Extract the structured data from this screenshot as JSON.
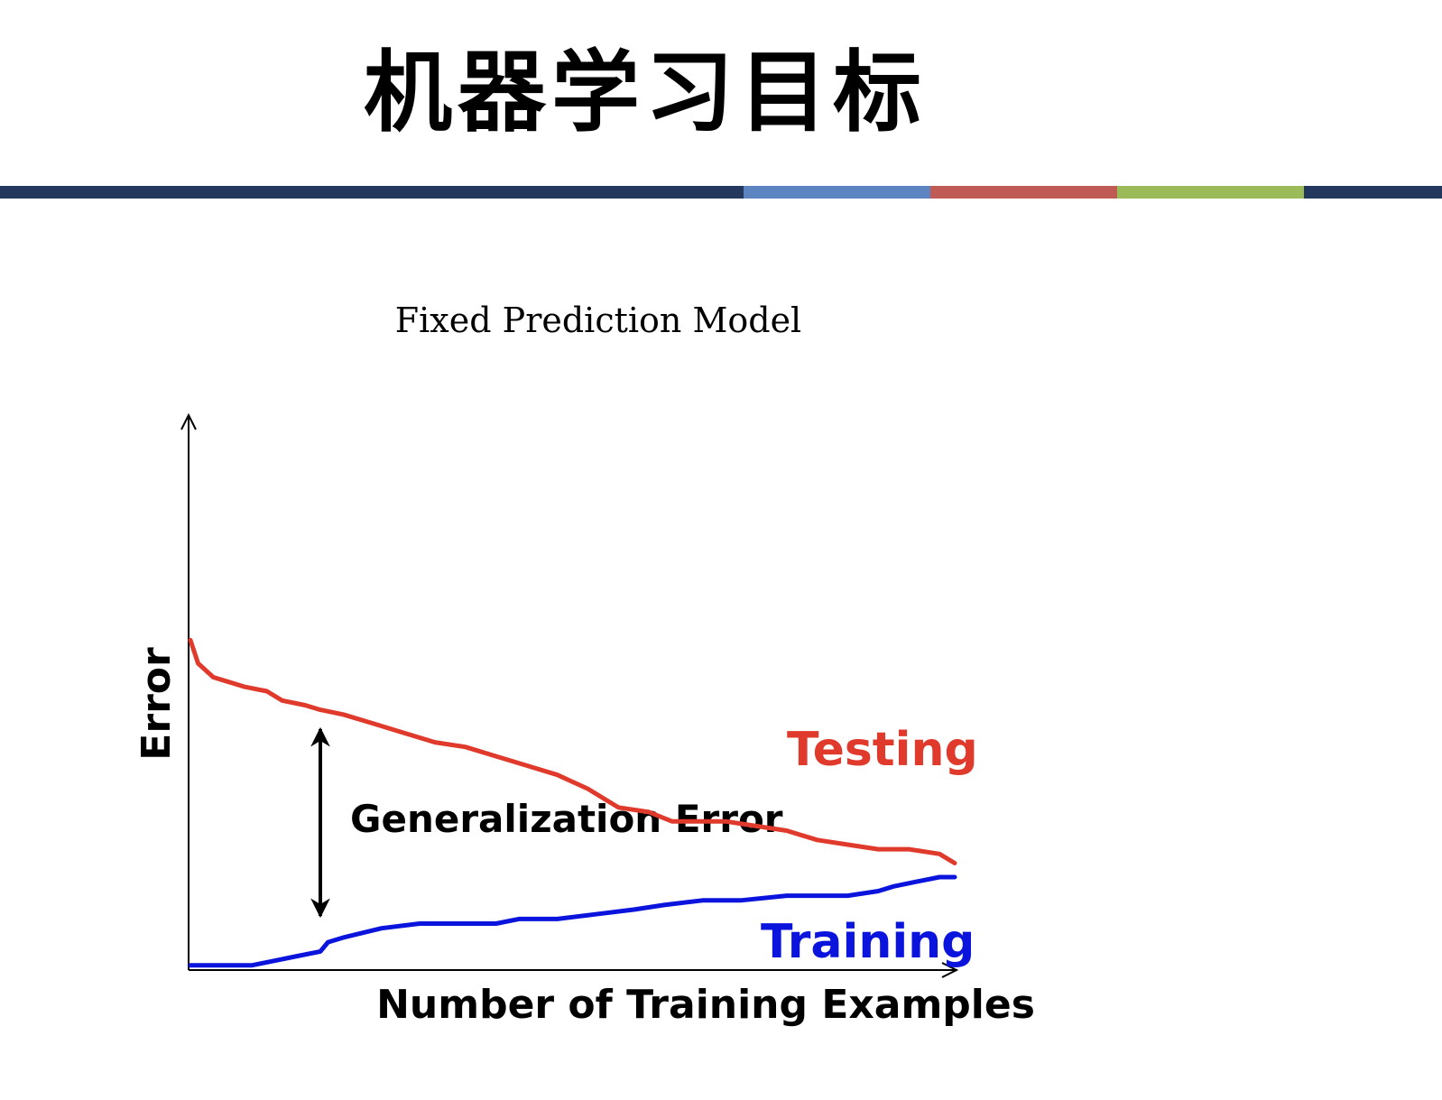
{
  "slide": {
    "title": "机器学习目标",
    "divider_colors": [
      "#23385c",
      "#5b84c1",
      "#c05a55",
      "#9bbb59",
      "#23385c"
    ]
  },
  "chart_data": {
    "type": "line",
    "title": "Fixed Prediction Model",
    "xlabel": "Number of Training Examples",
    "ylabel": "Error",
    "xlim": [
      0,
      100
    ],
    "ylim": [
      0,
      100
    ],
    "grid": false,
    "axis_ticks": false,
    "series": [
      {
        "name": "Testing",
        "color": "#e03a2c",
        "x": [
          0,
          1,
          3,
          5,
          7,
          10,
          12,
          15,
          17,
          20,
          24,
          28,
          32,
          36,
          40,
          44,
          48,
          52,
          56,
          60,
          63,
          66,
          70,
          74,
          78,
          82,
          86,
          90,
          94,
          98,
          100
        ],
        "y": [
          71,
          66,
          63,
          62,
          61,
          60,
          58,
          57,
          56,
          55,
          53,
          51,
          49,
          48,
          46,
          44,
          42,
          39,
          35,
          34,
          32,
          32,
          32,
          31,
          30,
          28,
          27,
          26,
          26,
          25,
          23
        ]
      },
      {
        "name": "Training",
        "color": "#0a14dc",
        "x": [
          0,
          5,
          8,
          11,
          14,
          17,
          18,
          20,
          25,
          30,
          35,
          40,
          43,
          48,
          53,
          58,
          62,
          67,
          72,
          78,
          82,
          86,
          90,
          92,
          95,
          98,
          100
        ],
        "y": [
          1,
          1,
          1,
          2,
          3,
          4,
          6,
          7,
          9,
          10,
          10,
          10,
          11,
          11,
          12,
          13,
          14,
          15,
          15,
          16,
          16,
          16,
          17,
          18,
          19,
          20,
          20
        ]
      }
    ],
    "annotations": [
      {
        "text": "Generalization Error",
        "type": "double-arrow"
      }
    ]
  }
}
